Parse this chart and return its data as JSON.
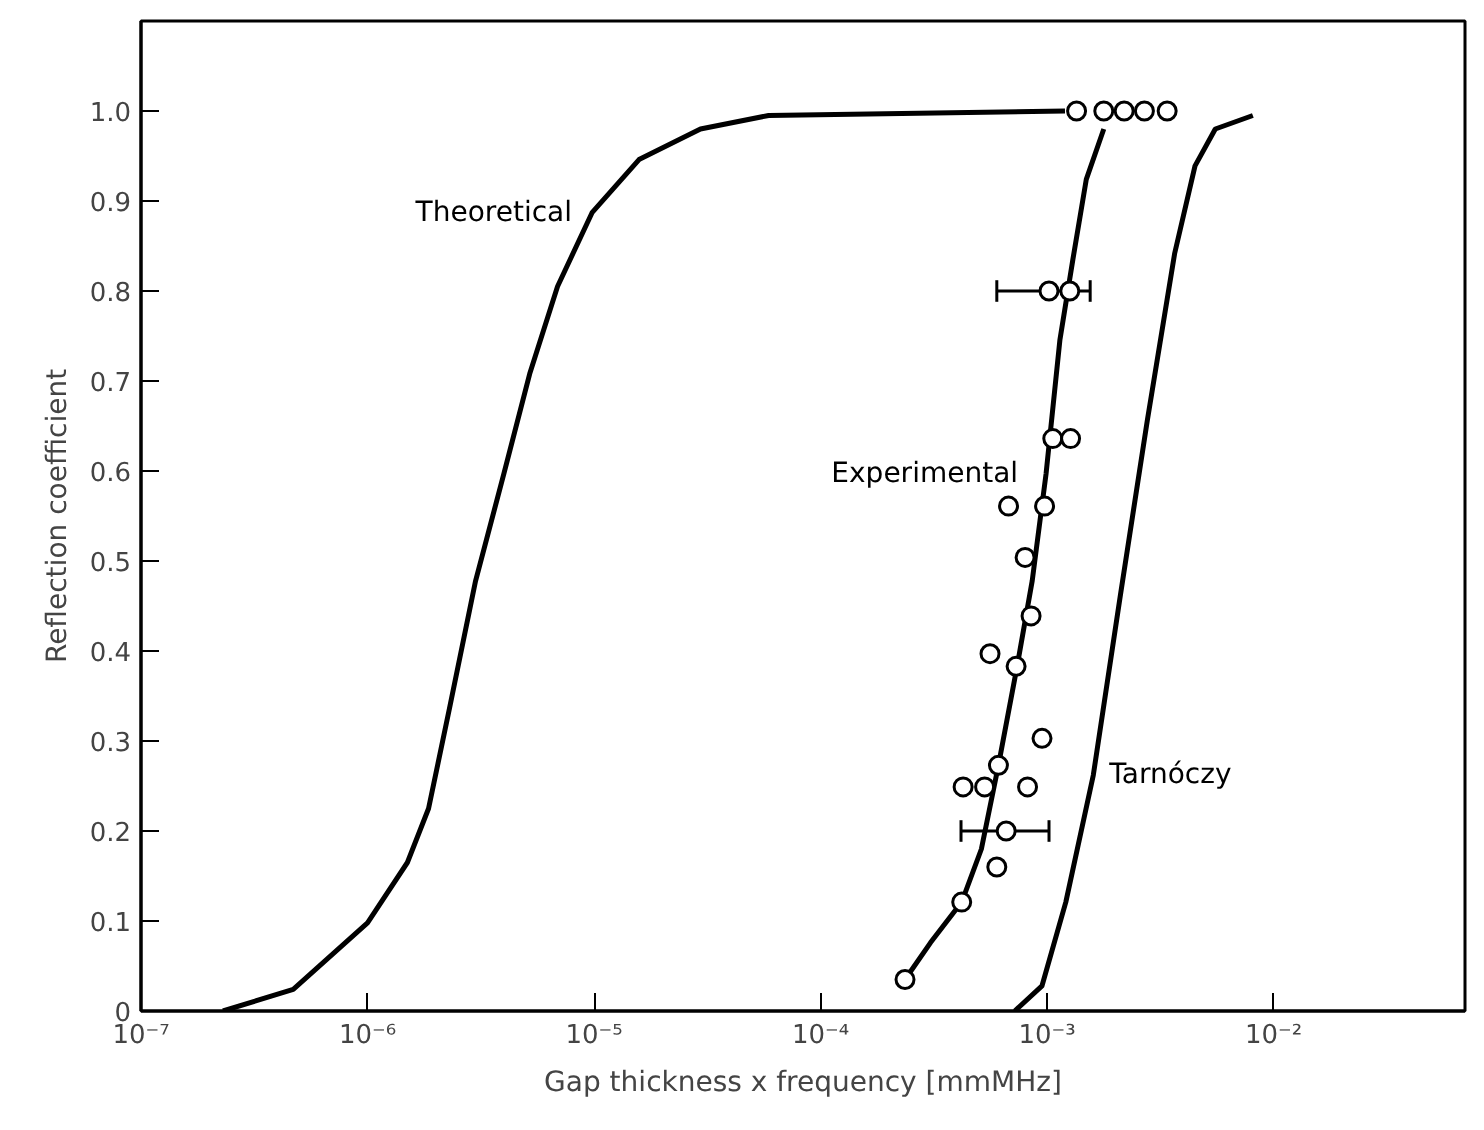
{
  "chart_data": {
    "type": "line",
    "xlabel": "Gap thickness x frequency [mmMHz]",
    "ylabel": "Reflection coefficient",
    "log": "x",
    "xlim": [
      1e-07,
      0.07
    ],
    "ylim": [
      0,
      1.1
    ],
    "xticks": [
      {
        "value": 1e-07,
        "label": "10⁻⁷"
      },
      {
        "value": 1e-06,
        "label": "10⁻⁶"
      },
      {
        "value": 1e-05,
        "label": "10⁻⁵"
      },
      {
        "value": 0.0001,
        "label": "10⁻⁴"
      },
      {
        "value": 0.001,
        "label": "10⁻³"
      },
      {
        "value": 0.01,
        "label": "10⁻²"
      }
    ],
    "yticks": [
      0,
      {
        "value": 0.1,
        "label": "0.1"
      },
      {
        "value": 0.2,
        "label": "0.2"
      },
      {
        "value": 0.3,
        "label": "0.3"
      },
      {
        "value": 0.4,
        "label": "0.4"
      },
      {
        "value": 0.5,
        "label": "0.5"
      },
      {
        "value": 0.6,
        "label": "0.6"
      },
      {
        "value": 0.7,
        "label": "0.7"
      },
      {
        "value": 0.8,
        "label": "0.8"
      },
      {
        "value": 0.9,
        "label": "0.9"
      },
      {
        "value": 1.0,
        "label": "1.0"
      }
    ],
    "grid": false,
    "marker": "none",
    "line_style": "solid",
    "series": [
      {
        "name": "Theoretical",
        "color": "#000000",
        "x": [
          2.3e-07,
          4.7e-07,
          1e-06,
          1.5e-06,
          1.86e-06,
          2.3e-06,
          3e-06,
          4e-06,
          5.2e-06,
          6.9e-06,
          9.8e-06,
          1.58e-05,
          2.95e-05,
          5.9e-05,
          0.0012
        ],
        "values": [
          0,
          0.024,
          0.098,
          0.165,
          0.225,
          0.336,
          0.478,
          0.597,
          0.708,
          0.805,
          0.887,
          0.946,
          0.98,
          0.995,
          1.0
        ]
      },
      {
        "name": "Experimental",
        "color": "#000000",
        "x": [
          0.000236,
          0.000306,
          0.00042,
          0.000513,
          0.00061,
          0.00074,
          0.00086,
          0.00099,
          0.00114,
          0.0013,
          0.00149,
          0.00178
        ],
        "values": [
          0.035,
          0.076,
          0.121,
          0.18,
          0.273,
          0.385,
          0.478,
          0.597,
          0.746,
          0.835,
          0.924,
          0.98
        ]
      },
      {
        "name": "Tarnóczy",
        "color": "#000000",
        "x": [
          0.00072,
          0.00095,
          0.00121,
          0.0016,
          0.00211,
          0.00277,
          0.00366,
          0.0045,
          0.00553,
          0.0081
        ],
        "values": [
          0,
          0.028,
          0.121,
          0.262,
          0.463,
          0.656,
          0.842,
          0.939,
          0.98,
          0.995
        ]
      },
      {
        "type": "scatter",
        "marker": "circle",
        "color": "#000000",
        "x": [
          0.00135,
          0.00178,
          0.00219,
          0.00269,
          0.00339,
          0.00102,
          0.00126,
          0.00106,
          0.00127,
          0.000676,
          0.000975,
          0.0008,
          0.00085,
          0.00056,
          0.00073,
          0.00095,
          0.00061,
          0.000426,
          0.00053,
          0.00082,
          0.00066,
          0.0006,
          0.00042,
          0.000236
        ],
        "values": [
          1.0,
          1.0,
          1.0,
          1.0,
          1.0,
          0.8,
          0.8,
          0.636,
          0.636,
          0.561,
          0.561,
          0.504,
          0.439,
          0.397,
          0.383,
          0.303,
          0.273,
          0.249,
          0.249,
          0.249,
          0.2,
          0.16,
          0.121,
          0.035
        ],
        "xerrors": [
          null,
          null,
          null,
          null,
          null,
          [
            0.0006,
            0.00155
          ],
          null,
          null,
          null,
          null,
          null,
          null,
          null,
          null,
          null,
          null,
          null,
          null,
          null,
          null,
          [
            0.000417,
            0.00102
          ],
          null,
          null,
          null
        ]
      }
    ]
  }
}
